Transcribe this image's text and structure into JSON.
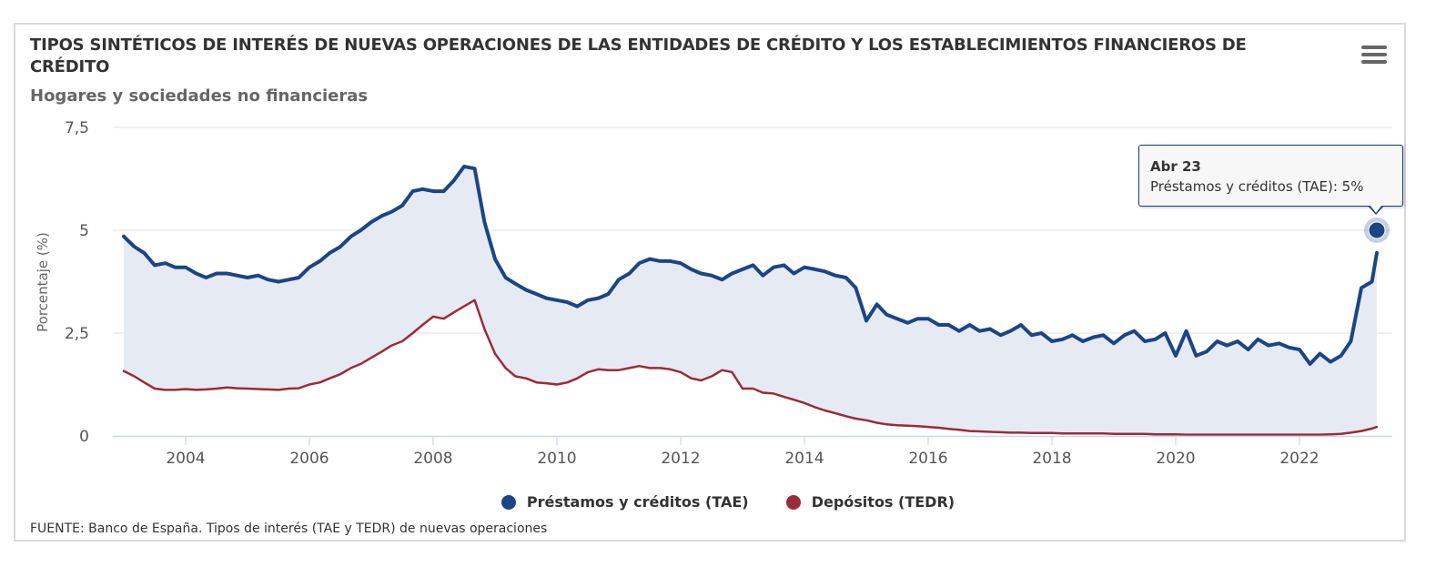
{
  "header": {
    "title": "TIPOS SINTÉTICOS DE INTERÉS DE NUEVAS OPERACIONES DE LAS ENTIDADES DE CRÉDITO Y LOS ESTABLECIMIENTOS FINANCIEROS DE CRÉDITO",
    "subtitle": "Hogares y sociedades no financieras",
    "menu_icon": "hamburger-menu-icon"
  },
  "tooltip": {
    "header": "Abr 23",
    "body": "Préstamos y créditos (TAE): 5%"
  },
  "legend": [
    {
      "label": "Préstamos y créditos (TAE)",
      "color": "#1b4585"
    },
    {
      "label": "Depósitos (TEDR)",
      "color": "#9b2b38"
    }
  ],
  "source": "FUENTE: Banco de España. Tipos de interés (TAE y TEDR) de nuevas operaciones",
  "chart_data": {
    "type": "line",
    "title": "TIPOS SINTÉTICOS DE INTERÉS DE NUEVAS OPERACIONES DE LAS ENTIDADES DE CRÉDITO Y LOS ESTABLECIMIENTOS FINANCIEROS DE CRÉDITO",
    "subtitle": "Hogares y sociedades no financieras",
    "xlabel": "",
    "ylabel": "Porcentaje (%)",
    "xlim": [
      2002.75,
      2023.6
    ],
    "ylim": [
      0,
      7.5
    ],
    "yticks": [
      0,
      2.5,
      5,
      7.5
    ],
    "ytick_labels": [
      "0",
      "2,5",
      "5",
      "7,5"
    ],
    "xticks": [
      2004,
      2006,
      2008,
      2010,
      2012,
      2014,
      2016,
      2018,
      2020,
      2022
    ],
    "xtick_labels": [
      "2004",
      "2006",
      "2008",
      "2010",
      "2012",
      "2014",
      "2016",
      "2018",
      "2020",
      "2022"
    ],
    "grid": true,
    "legend_position": "bottom-center",
    "area_between_series": true,
    "highlighted_point": {
      "series": "Préstamos y créditos (TAE)",
      "x": 2023.25,
      "label": "Abr 23",
      "value": 5
    },
    "x": [
      2003.0,
      2003.17,
      2003.33,
      2003.5,
      2003.67,
      2003.83,
      2004.0,
      2004.17,
      2004.33,
      2004.5,
      2004.67,
      2004.83,
      2005.0,
      2005.17,
      2005.33,
      2005.5,
      2005.67,
      2005.83,
      2006.0,
      2006.17,
      2006.33,
      2006.5,
      2006.67,
      2006.83,
      2007.0,
      2007.17,
      2007.33,
      2007.5,
      2007.67,
      2007.83,
      2008.0,
      2008.17,
      2008.33,
      2008.5,
      2008.67,
      2008.83,
      2009.0,
      2009.17,
      2009.33,
      2009.5,
      2009.67,
      2009.83,
      2010.0,
      2010.17,
      2010.33,
      2010.5,
      2010.67,
      2010.83,
      2011.0,
      2011.17,
      2011.33,
      2011.5,
      2011.67,
      2011.83,
      2012.0,
      2012.17,
      2012.33,
      2012.5,
      2012.67,
      2012.83,
      2013.0,
      2013.17,
      2013.33,
      2013.5,
      2013.67,
      2013.83,
      2014.0,
      2014.17,
      2014.33,
      2014.5,
      2014.67,
      2014.83,
      2015.0,
      2015.17,
      2015.33,
      2015.5,
      2015.67,
      2015.83,
      2016.0,
      2016.17,
      2016.33,
      2016.5,
      2016.67,
      2016.83,
      2017.0,
      2017.17,
      2017.33,
      2017.5,
      2017.67,
      2017.83,
      2018.0,
      2018.17,
      2018.33,
      2018.5,
      2018.67,
      2018.83,
      2019.0,
      2019.17,
      2019.33,
      2019.5,
      2019.67,
      2019.83,
      2020.0,
      2020.17,
      2020.33,
      2020.5,
      2020.67,
      2020.83,
      2021.0,
      2021.17,
      2021.33,
      2021.5,
      2021.67,
      2021.83,
      2022.0,
      2022.17,
      2022.33,
      2022.5,
      2022.67,
      2022.83,
      2023.0,
      2023.17,
      2023.25
    ],
    "series": [
      {
        "name": "Préstamos y créditos (TAE)",
        "color": "#1b4585",
        "values": [
          4.85,
          4.6,
          4.45,
          4.15,
          4.2,
          4.1,
          4.1,
          3.95,
          3.85,
          3.95,
          3.95,
          3.9,
          3.85,
          3.9,
          3.8,
          3.75,
          3.8,
          3.85,
          4.1,
          4.25,
          4.45,
          4.6,
          4.85,
          5.0,
          5.2,
          5.35,
          5.45,
          5.6,
          5.95,
          6.0,
          5.95,
          5.95,
          6.2,
          6.55,
          6.5,
          5.2,
          4.3,
          3.85,
          3.7,
          3.55,
          3.45,
          3.35,
          3.3,
          3.25,
          3.15,
          3.3,
          3.35,
          3.45,
          3.8,
          3.95,
          4.2,
          4.3,
          4.25,
          4.25,
          4.2,
          4.05,
          3.95,
          3.9,
          3.8,
          3.95,
          4.05,
          4.15,
          3.9,
          4.1,
          4.15,
          3.95,
          4.1,
          4.05,
          4.0,
          3.9,
          3.85,
          3.6,
          2.8,
          3.2,
          2.95,
          2.85,
          2.75,
          2.85,
          2.85,
          2.7,
          2.7,
          2.55,
          2.7,
          2.55,
          2.6,
          2.45,
          2.55,
          2.7,
          2.45,
          2.5,
          2.3,
          2.35,
          2.45,
          2.3,
          2.4,
          2.45,
          2.25,
          2.45,
          2.55,
          2.3,
          2.35,
          2.5,
          1.95,
          2.55,
          1.95,
          2.05,
          2.3,
          2.2,
          2.3,
          2.1,
          2.35,
          2.2,
          2.25,
          2.15,
          2.1,
          1.75,
          2.0,
          1.8,
          1.95,
          2.3,
          3.6,
          3.75,
          4.45,
          4.65,
          5.0
        ]
      },
      {
        "name": "Depósitos (TEDR)",
        "color": "#9b2b38",
        "values": [
          1.58,
          1.45,
          1.3,
          1.15,
          1.12,
          1.12,
          1.14,
          1.12,
          1.13,
          1.15,
          1.18,
          1.16,
          1.15,
          1.14,
          1.13,
          1.12,
          1.15,
          1.16,
          1.25,
          1.3,
          1.4,
          1.5,
          1.65,
          1.75,
          1.9,
          2.05,
          2.2,
          2.3,
          2.5,
          2.7,
          2.9,
          2.85,
          3.0,
          3.15,
          3.3,
          2.6,
          2.0,
          1.65,
          1.45,
          1.4,
          1.3,
          1.28,
          1.25,
          1.3,
          1.4,
          1.55,
          1.62,
          1.6,
          1.6,
          1.65,
          1.7,
          1.65,
          1.65,
          1.62,
          1.55,
          1.4,
          1.35,
          1.45,
          1.6,
          1.55,
          1.15,
          1.15,
          1.05,
          1.03,
          0.95,
          0.88,
          0.8,
          0.7,
          0.62,
          0.55,
          0.48,
          0.42,
          0.38,
          0.32,
          0.28,
          0.26,
          0.25,
          0.24,
          0.22,
          0.2,
          0.17,
          0.15,
          0.12,
          0.11,
          0.1,
          0.09,
          0.08,
          0.08,
          0.07,
          0.07,
          0.07,
          0.06,
          0.06,
          0.06,
          0.06,
          0.06,
          0.05,
          0.05,
          0.05,
          0.05,
          0.04,
          0.04,
          0.04,
          0.03,
          0.03,
          0.03,
          0.03,
          0.03,
          0.03,
          0.03,
          0.03,
          0.03,
          0.03,
          0.03,
          0.03,
          0.03,
          0.03,
          0.04,
          0.05,
          0.08,
          0.12,
          0.18,
          0.22,
          0.28,
          0.3
        ]
      }
    ]
  }
}
